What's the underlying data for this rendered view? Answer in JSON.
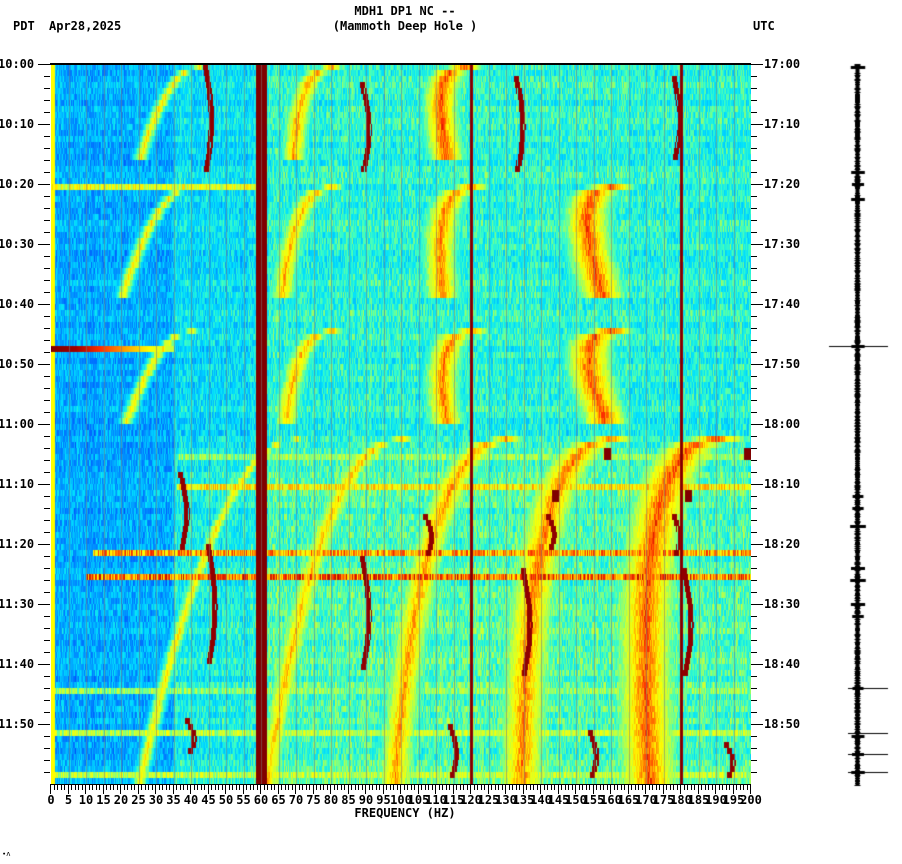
{
  "header": {
    "title_line1": "MDH1 DP1 NC --",
    "title_line2": "(Mammoth Deep Hole )",
    "left_timezone": "PDT",
    "date": "Apr28,2025",
    "right_timezone": "UTC"
  },
  "footer": {
    "mark": "∙ʌ"
  },
  "chart_data": {
    "type": "heatmap",
    "title": "MDH1 DP1 NC -- (Mammoth Deep Hole )",
    "subtitle": "Apr28,2025",
    "xlabel": "FREQUENCY (HZ)",
    "ylabel_left": "PDT",
    "ylabel_right": "UTC",
    "xlim": [
      0,
      200
    ],
    "x_ticks": [
      0,
      5,
      10,
      15,
      20,
      25,
      30,
      35,
      40,
      45,
      50,
      55,
      60,
      65,
      70,
      75,
      80,
      85,
      90,
      95,
      100,
      105,
      110,
      115,
      120,
      125,
      130,
      135,
      140,
      145,
      150,
      155,
      160,
      165,
      170,
      175,
      180,
      185,
      190,
      195,
      200
    ],
    "x_minor_tick_step": 1,
    "y_ticks_left": [
      "10:00",
      "10:10",
      "10:20",
      "10:30",
      "10:40",
      "10:50",
      "11:00",
      "11:10",
      "11:20",
      "11:30",
      "11:40",
      "11:50"
    ],
    "y_ticks_right": [
      "17:00",
      "17:10",
      "17:20",
      "17:30",
      "17:40",
      "17:50",
      "18:00",
      "18:10",
      "18:20",
      "18:30",
      "18:40",
      "18:50"
    ],
    "y_minor_tick_minutes": 2,
    "duration_minutes": 120,
    "colormap": [
      "#0000c8",
      "#0060ff",
      "#00a0ff",
      "#00e0ff",
      "#40ffc0",
      "#c0ff40",
      "#ffff00",
      "#ffa000",
      "#ff3000",
      "#a00000",
      "#800000"
    ],
    "persistent_lines_hz": [
      {
        "hz": 60,
        "intensity": 1.0,
        "width_hz": 1.6
      },
      {
        "hz": 120,
        "intensity": 0.95,
        "width_hz": 0.4
      },
      {
        "hz": 180,
        "intensity": 0.95,
        "width_hz": 0.4
      },
      {
        "hz": 0.5,
        "intensity": 0.6,
        "width_hz": 0.6
      }
    ],
    "horizontal_bands": [
      {
        "minute": 20.5,
        "hz_from": 0,
        "hz_to": 60,
        "intensity": 0.6
      },
      {
        "minute": 47.5,
        "hz_from": 0,
        "hz_to": 35,
        "intensity": 1.0
      },
      {
        "minute": 65,
        "hz_from": 36,
        "hz_to": 200,
        "intensity": 0.5
      },
      {
        "minute": 70,
        "hz_from": 36,
        "hz_to": 200,
        "intensity": 0.65
      },
      {
        "minute": 81,
        "hz_from": 12,
        "hz_to": 200,
        "intensity": 0.75
      },
      {
        "minute": 85.5,
        "hz_from": 10,
        "hz_to": 200,
        "intensity": 0.8
      },
      {
        "minute": 104.5,
        "hz_from": 0,
        "hz_to": 200,
        "intensity": 0.5
      },
      {
        "minute": 111,
        "hz_from": 0,
        "hz_to": 200,
        "intensity": 0.55
      },
      {
        "minute": 118.5,
        "hz_from": 0,
        "hz_to": 200,
        "intensity": 0.55
      }
    ],
    "sweeps": [
      {
        "t0": 0,
        "t1": 16,
        "f0": 42,
        "f1": 25,
        "count": 3,
        "spacing_hz": 38
      },
      {
        "t0": 20,
        "t1": 39,
        "f0": 40,
        "f1": 20,
        "count": 4,
        "spacing_hz": 40
      },
      {
        "t0": 44,
        "t1": 60,
        "f0": 40,
        "f1": 21,
        "count": 4,
        "spacing_hz": 40
      },
      {
        "t0": 62,
        "t1": 120,
        "f0": 70,
        "f1": 25,
        "count": 5,
        "spacing_hz": 30
      }
    ],
    "vertical_tracks": [
      {
        "hz": 44,
        "t0": 0,
        "t1": 18
      },
      {
        "hz": 89,
        "t0": 3,
        "t1": 18
      },
      {
        "hz": 133,
        "t0": 2,
        "t1": 18
      },
      {
        "hz": 178,
        "t0": 2,
        "t1": 16
      },
      {
        "hz": 37,
        "t0": 68,
        "t1": 81
      },
      {
        "hz": 45,
        "t0": 80,
        "t1": 100
      },
      {
        "hz": 107,
        "t0": 75,
        "t1": 82
      },
      {
        "hz": 142,
        "t0": 75,
        "t1": 81
      },
      {
        "hz": 178,
        "t0": 75,
        "t1": 82
      },
      {
        "hz": 89,
        "t0": 82,
        "t1": 101
      },
      {
        "hz": 135,
        "t0": 84,
        "t1": 102
      },
      {
        "hz": 181,
        "t0": 84,
        "t1": 102
      },
      {
        "hz": 39,
        "t0": 109,
        "t1": 115
      },
      {
        "hz": 114,
        "t0": 110,
        "t1": 119
      },
      {
        "hz": 154,
        "t0": 111,
        "t1": 119
      },
      {
        "hz": 193,
        "t0": 113,
        "t1": 119
      }
    ],
    "spots": [
      {
        "hz": 159,
        "minute": 64,
        "intensity": 1.0
      },
      {
        "hz": 199,
        "minute": 64,
        "intensity": 1.0
      },
      {
        "hz": 144,
        "minute": 71,
        "intensity": 1.0
      },
      {
        "hz": 182,
        "minute": 71,
        "intensity": 1.0
      }
    ]
  },
  "seismogram": {
    "trace_x": 858,
    "spikes_minutes": [
      0.5,
      18,
      20,
      22.5,
      47,
      72,
      74,
      77,
      84,
      86,
      90,
      92,
      104,
      112,
      115,
      118
    ],
    "long_markers_minutes": [
      47,
      104,
      111.5,
      115,
      118
    ]
  }
}
